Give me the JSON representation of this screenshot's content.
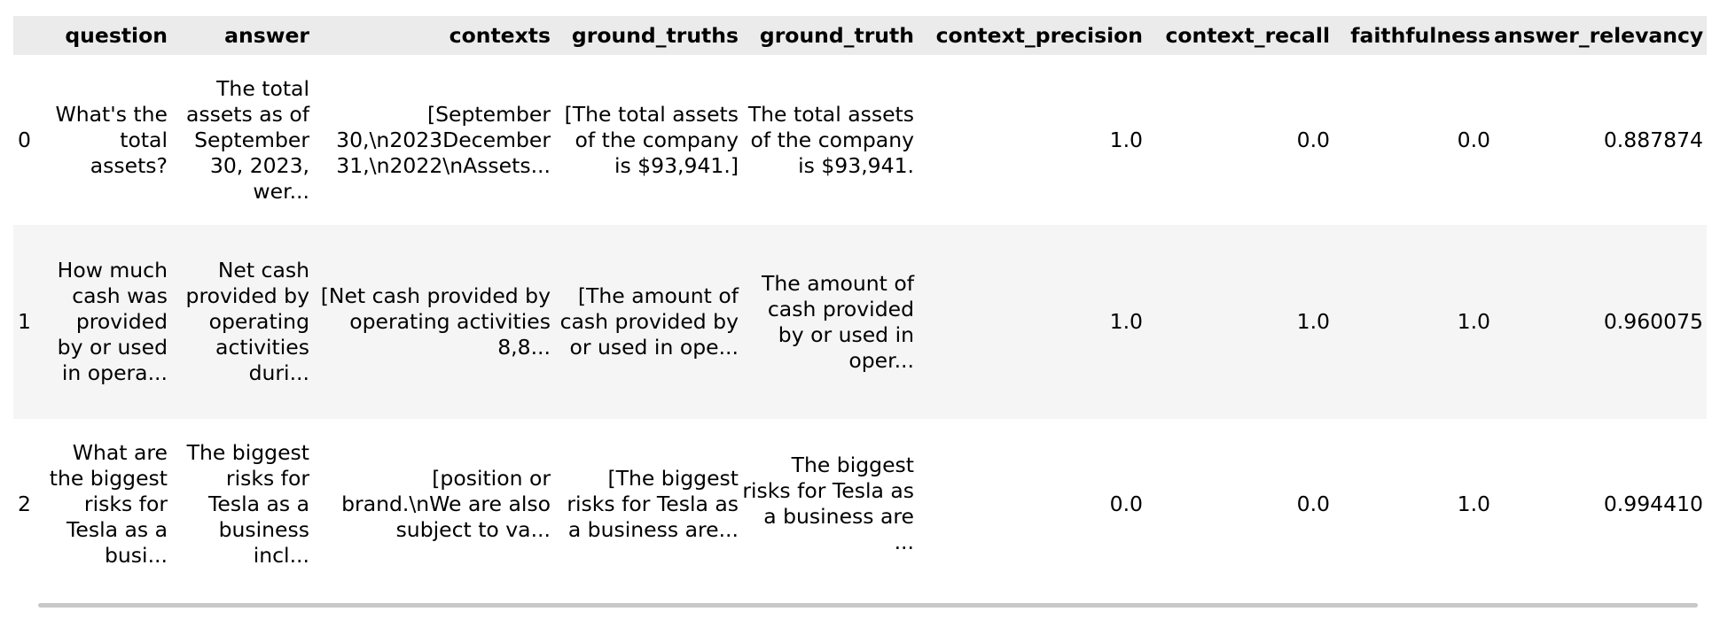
{
  "table": {
    "columns": {
      "index": "",
      "question": "question",
      "answer": "answer",
      "contexts": "contexts",
      "ground_truths": "ground_truths",
      "ground_truth": "ground_truth",
      "context_precision": "context_precision",
      "context_recall": "context_recall",
      "faithfulness": "faithfulness",
      "answer_relevancy": "answer_relevancy"
    },
    "rows": [
      {
        "index": "0",
        "question": "What's the total assets?",
        "answer": "The total assets as of September 30, 2023, wer...",
        "contexts": "[September 30,\\n2023December 31,\\n2022\\nAssets...",
        "ground_truths": "[The total assets of the company is $93,941.]",
        "ground_truth": "The total assets of the company is $93,941.",
        "context_precision": "1.0",
        "context_recall": "0.0",
        "faithfulness": "0.0",
        "answer_relevancy": "0.887874"
      },
      {
        "index": "1",
        "question": "How much cash was provided by or used in opera...",
        "answer": "Net cash provided by operating activities duri...",
        "contexts": "[Net cash provided by operating activities 8,8...",
        "ground_truths": "[The amount of cash provided by or used in ope...",
        "ground_truth": "The amount of cash provided by or used in oper...",
        "context_precision": "1.0",
        "context_recall": "1.0",
        "faithfulness": "1.0",
        "answer_relevancy": "0.960075"
      },
      {
        "index": "2",
        "question": "What are the biggest risks for Tesla as a busi...",
        "answer": "The biggest risks for Tesla as a business incl...",
        "contexts": "[position or brand.\\nWe are also subject to va...",
        "ground_truths": "[The biggest risks for Tesla as a business are...",
        "ground_truth": "The biggest risks for Tesla as a business are ...",
        "context_precision": "0.0",
        "context_recall": "0.0",
        "faithfulness": "1.0",
        "answer_relevancy": "0.994410"
      }
    ]
  }
}
